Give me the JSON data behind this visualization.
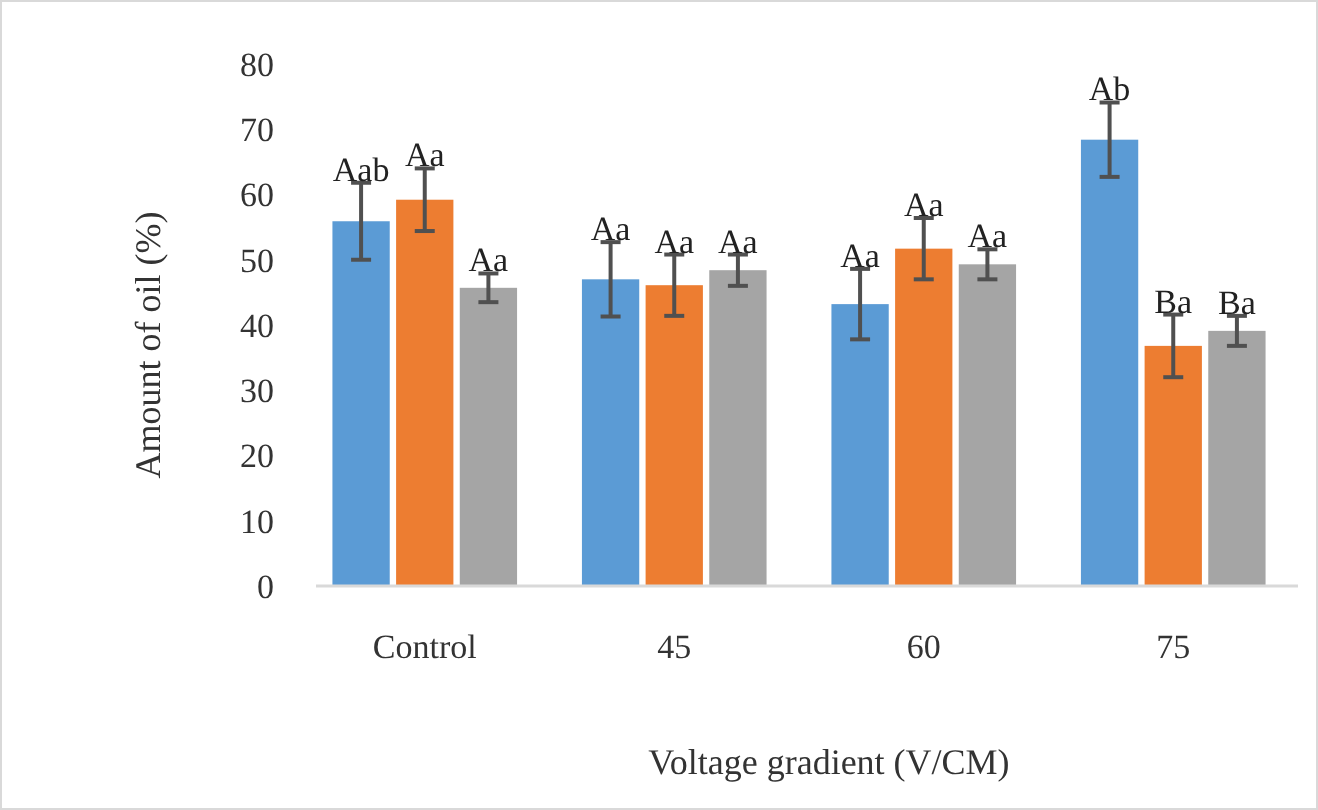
{
  "chart_data": {
    "type": "bar",
    "xlabel": "Voltage gradient (V/CM)",
    "ylabel": "Amount of oil (%)",
    "categories": [
      "Control",
      "45",
      "60",
      "75"
    ],
    "series": [
      {
        "color": "#5b9bd5",
        "values": [
          55.9,
          47.0,
          43.2,
          68.4
        ],
        "errors": [
          5.9,
          5.7,
          5.4,
          5.7
        ],
        "value_labels": [
          "Aab",
          "Aa",
          "Aa",
          "Ab"
        ]
      },
      {
        "color": "#ed7d31",
        "values": [
          59.2,
          46.1,
          51.7,
          36.8
        ],
        "errors": [
          4.8,
          4.7,
          4.7,
          4.8
        ],
        "value_labels": [
          "Aa",
          "Aa",
          "Aa",
          "Ba"
        ]
      },
      {
        "color": "#a5a5a5",
        "values": [
          45.7,
          48.4,
          49.3,
          39.1
        ],
        "errors": [
          2.2,
          2.4,
          2.3,
          2.3
        ],
        "value_labels": [
          "Aa",
          "Aa",
          "Aa",
          "Ba"
        ]
      }
    ],
    "ylim": [
      0,
      80
    ],
    "yticks": [
      0,
      10,
      20,
      30,
      40,
      50,
      60,
      70,
      80
    ],
    "grid": false
  }
}
